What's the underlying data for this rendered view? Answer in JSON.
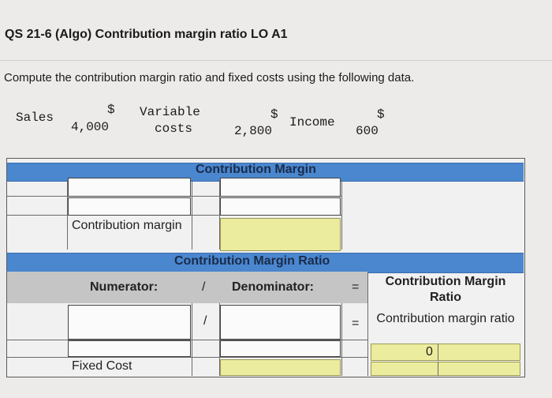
{
  "header": {
    "title": "QS 21-6 (Algo) Contribution margin ratio LO A1",
    "instructions": "Compute the contribution margin ratio and fixed costs using the following data."
  },
  "given_data": {
    "sales_label": "Sales",
    "sales_currency": "$",
    "sales_value": "4,000",
    "variable_label_1": "Variable",
    "variable_label_2": "costs",
    "variable_currency": "$",
    "variable_value": "2,800",
    "income_label": "Income",
    "income_currency": "$",
    "income_value": "600"
  },
  "contribution_margin_section": {
    "heading": "Contribution Margin",
    "result_label": "Contribution margin"
  },
  "ratio_section": {
    "heading": "Contribution Margin Ratio",
    "numerator_label": "Numerator:",
    "divide_symbol": "/",
    "denominator_label": "Denominator:",
    "equals_symbol": "=",
    "result_header": "Contribution Margin Ratio",
    "result_label": "Contribution margin ratio",
    "result_value": "0"
  },
  "fixed_cost_section": {
    "label": "Fixed Cost"
  },
  "colors": {
    "band_blue": "#4a87cf",
    "answer_yellow": "#ecec9e"
  }
}
